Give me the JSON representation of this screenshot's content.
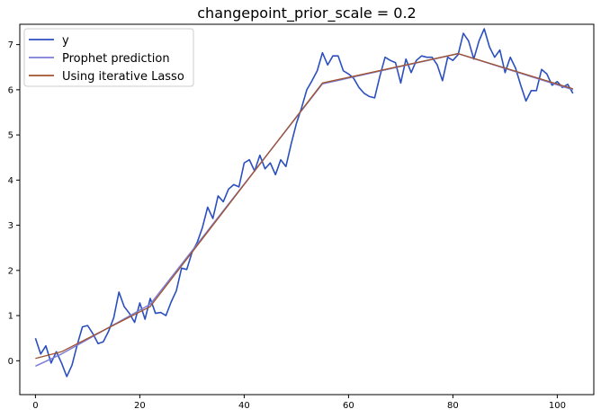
{
  "chart_data": {
    "type": "line",
    "title": "changepoint_prior_scale = 0.2",
    "xlabel": "",
    "ylabel": "",
    "xlim": [
      -3,
      107
    ],
    "ylim": [
      -0.75,
      7.45
    ],
    "x_ticks": [
      0,
      20,
      40,
      60,
      80,
      100
    ],
    "y_ticks": [
      0,
      1,
      2,
      3,
      4,
      5,
      6,
      7
    ],
    "grid": false,
    "legend_position": "top-left",
    "series": [
      {
        "name": "y",
        "color": "#2b4fbf",
        "points": [
          [
            0,
            0.5
          ],
          [
            1,
            0.15
          ],
          [
            2,
            0.33
          ],
          [
            3,
            -0.05
          ],
          [
            4,
            0.2
          ],
          [
            5,
            -0.05
          ],
          [
            6,
            -0.35
          ],
          [
            7,
            -0.1
          ],
          [
            8,
            0.35
          ],
          [
            9,
            0.75
          ],
          [
            10,
            0.78
          ],
          [
            11,
            0.6
          ],
          [
            12,
            0.38
          ],
          [
            13,
            0.42
          ],
          [
            14,
            0.65
          ],
          [
            15,
            0.95
          ],
          [
            16,
            1.52
          ],
          [
            17,
            1.2
          ],
          [
            18,
            1.05
          ],
          [
            19,
            0.85
          ],
          [
            20,
            1.28
          ],
          [
            21,
            0.92
          ],
          [
            22,
            1.38
          ],
          [
            23,
            1.05
          ],
          [
            24,
            1.07
          ],
          [
            25,
            1.0
          ],
          [
            26,
            1.3
          ],
          [
            27,
            1.55
          ],
          [
            28,
            2.05
          ],
          [
            29,
            2.02
          ],
          [
            30,
            2.4
          ],
          [
            31,
            2.62
          ],
          [
            32,
            2.95
          ],
          [
            33,
            3.4
          ],
          [
            34,
            3.15
          ],
          [
            35,
            3.65
          ],
          [
            36,
            3.52
          ],
          [
            37,
            3.8
          ],
          [
            38,
            3.9
          ],
          [
            39,
            3.85
          ],
          [
            40,
            4.38
          ],
          [
            41,
            4.45
          ],
          [
            42,
            4.2
          ],
          [
            43,
            4.55
          ],
          [
            44,
            4.25
          ],
          [
            45,
            4.38
          ],
          [
            46,
            4.12
          ],
          [
            47,
            4.45
          ],
          [
            48,
            4.3
          ],
          [
            49,
            4.8
          ],
          [
            50,
            5.25
          ],
          [
            51,
            5.6
          ],
          [
            52,
            6.0
          ],
          [
            53,
            6.2
          ],
          [
            54,
            6.42
          ],
          [
            55,
            6.82
          ],
          [
            56,
            6.55
          ],
          [
            57,
            6.75
          ],
          [
            58,
            6.75
          ],
          [
            59,
            6.42
          ],
          [
            60,
            6.35
          ],
          [
            61,
            6.25
          ],
          [
            62,
            6.05
          ],
          [
            63,
            5.92
          ],
          [
            64,
            5.85
          ],
          [
            65,
            5.82
          ],
          [
            66,
            6.3
          ],
          [
            67,
            6.72
          ],
          [
            68,
            6.65
          ],
          [
            69,
            6.6
          ],
          [
            70,
            6.15
          ],
          [
            71,
            6.68
          ],
          [
            72,
            6.38
          ],
          [
            73,
            6.65
          ],
          [
            74,
            6.75
          ],
          [
            75,
            6.72
          ],
          [
            76,
            6.72
          ],
          [
            77,
            6.55
          ],
          [
            78,
            6.2
          ],
          [
            79,
            6.72
          ],
          [
            80,
            6.65
          ],
          [
            81,
            6.78
          ],
          [
            82,
            7.25
          ],
          [
            83,
            7.08
          ],
          [
            84,
            6.68
          ],
          [
            85,
            7.08
          ],
          [
            86,
            7.35
          ],
          [
            87,
            6.95
          ],
          [
            88,
            6.72
          ],
          [
            89,
            6.88
          ],
          [
            90,
            6.38
          ],
          [
            91,
            6.72
          ],
          [
            92,
            6.48
          ],
          [
            93,
            6.1
          ],
          [
            94,
            5.75
          ],
          [
            95,
            5.98
          ],
          [
            96,
            5.98
          ],
          [
            97,
            6.45
          ],
          [
            98,
            6.35
          ],
          [
            99,
            6.1
          ],
          [
            100,
            6.18
          ],
          [
            101,
            6.05
          ],
          [
            102,
            6.12
          ],
          [
            103,
            5.92
          ]
        ]
      },
      {
        "name": "Prophet prediction",
        "color": "#7b7bd8",
        "points": [
          [
            0,
            -0.12
          ],
          [
            5,
            0.15
          ],
          [
            22,
            1.25
          ],
          [
            55,
            6.13
          ],
          [
            81,
            6.8
          ],
          [
            103,
            6.0
          ]
        ]
      },
      {
        "name": "Using iterative Lasso",
        "color": "#a0522d",
        "points": [
          [
            0,
            0.05
          ],
          [
            5,
            0.2
          ],
          [
            22,
            1.2
          ],
          [
            55,
            6.15
          ],
          [
            81,
            6.8
          ],
          [
            103,
            6.02
          ]
        ]
      }
    ]
  }
}
